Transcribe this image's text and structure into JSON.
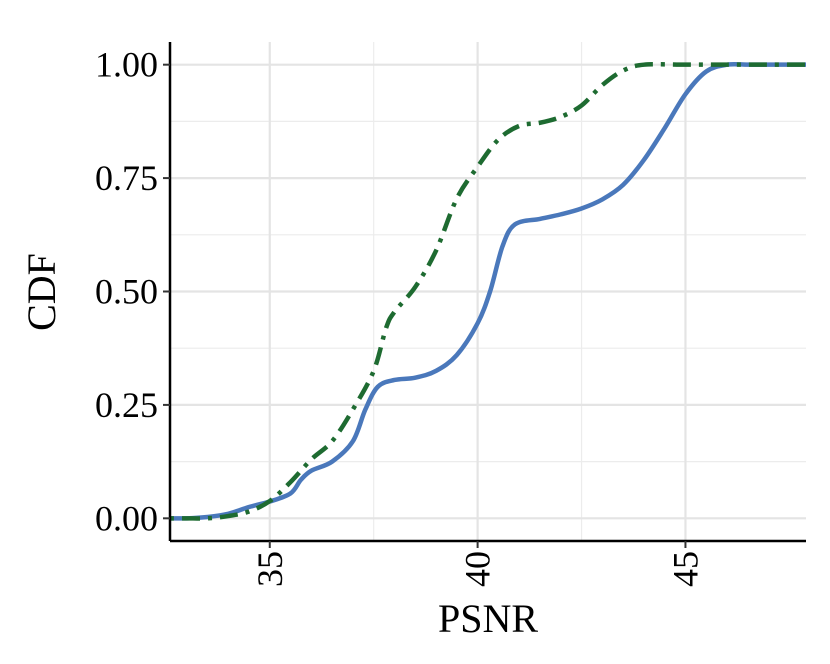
{
  "chart_data": {
    "type": "line",
    "title": "",
    "xlabel": "PSNR",
    "ylabel": "CDF",
    "xlim": [
      32.6,
      47.9
    ],
    "ylim": [
      -0.05,
      1.05
    ],
    "x_ticks": [
      35,
      40,
      45
    ],
    "x_tick_labels": [
      "35",
      "40",
      "45"
    ],
    "x_minor_ticks": [
      37.5,
      42.5
    ],
    "y_ticks": [
      0,
      0.25,
      0.5,
      0.75,
      1.0
    ],
    "y_tick_labels": [
      "0.00",
      "0.25",
      "0.50",
      "0.75",
      "1.00"
    ],
    "y_minor_ticks": [
      0.125,
      0.375,
      0.625,
      0.875
    ],
    "grid": true,
    "legend": "none",
    "series": [
      {
        "color": "#4a78bb",
        "dash": "solid",
        "points": [
          [
            32.6,
            0.0
          ],
          [
            33.0,
            0.0
          ],
          [
            33.5,
            0.003
          ],
          [
            34.0,
            0.01
          ],
          [
            34.5,
            0.025
          ],
          [
            35.0,
            0.037
          ],
          [
            35.5,
            0.055
          ],
          [
            35.75,
            0.085
          ],
          [
            36.0,
            0.105
          ],
          [
            36.5,
            0.125
          ],
          [
            37.0,
            0.17
          ],
          [
            37.3,
            0.24
          ],
          [
            37.6,
            0.29
          ],
          [
            38.0,
            0.305
          ],
          [
            38.5,
            0.31
          ],
          [
            39.0,
            0.325
          ],
          [
            39.5,
            0.36
          ],
          [
            40.0,
            0.43
          ],
          [
            40.3,
            0.5
          ],
          [
            40.6,
            0.6
          ],
          [
            40.9,
            0.648
          ],
          [
            41.5,
            0.66
          ],
          [
            42.0,
            0.67
          ],
          [
            42.5,
            0.683
          ],
          [
            43.0,
            0.703
          ],
          [
            43.5,
            0.735
          ],
          [
            44.0,
            0.79
          ],
          [
            44.5,
            0.86
          ],
          [
            45.0,
            0.935
          ],
          [
            45.5,
            0.985
          ],
          [
            46.0,
            1.0
          ],
          [
            46.5,
            1.0
          ],
          [
            47.0,
            1.0
          ],
          [
            47.9,
            1.0
          ]
        ]
      },
      {
        "color": "#1e6b31",
        "dash": "dotdash",
        "points": [
          [
            32.6,
            0.0
          ],
          [
            33.0,
            0.0
          ],
          [
            33.5,
            0.0
          ],
          [
            34.0,
            0.005
          ],
          [
            34.5,
            0.015
          ],
          [
            35.0,
            0.038
          ],
          [
            35.5,
            0.08
          ],
          [
            36.0,
            0.13
          ],
          [
            36.5,
            0.17
          ],
          [
            37.0,
            0.24
          ],
          [
            37.5,
            0.325
          ],
          [
            37.8,
            0.42
          ],
          [
            38.0,
            0.455
          ],
          [
            38.5,
            0.51
          ],
          [
            39.0,
            0.59
          ],
          [
            39.5,
            0.705
          ],
          [
            40.0,
            0.775
          ],
          [
            40.5,
            0.835
          ],
          [
            41.0,
            0.865
          ],
          [
            41.5,
            0.872
          ],
          [
            42.0,
            0.885
          ],
          [
            42.5,
            0.91
          ],
          [
            43.0,
            0.955
          ],
          [
            43.5,
            0.987
          ],
          [
            44.0,
            1.0
          ],
          [
            45.0,
            1.0
          ],
          [
            46.0,
            1.0
          ],
          [
            47.0,
            1.0
          ],
          [
            47.9,
            1.0
          ]
        ]
      }
    ]
  }
}
